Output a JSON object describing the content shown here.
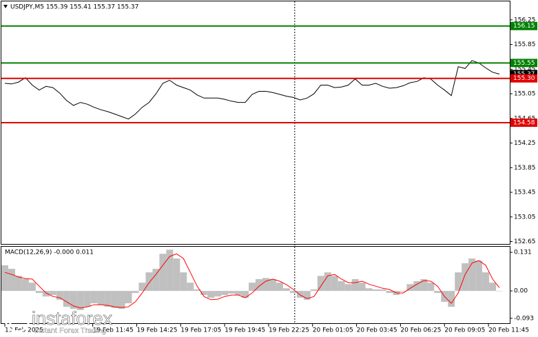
{
  "chart_data": [
    {
      "type": "line",
      "title": "USDJPY,M5  155.39 155.41 155.37 155.37",
      "color": "#000000",
      "x": [
        385,
        410,
        435,
        460,
        485,
        510,
        535,
        560,
        585,
        610,
        635,
        660,
        685,
        710,
        735,
        760,
        785,
        810,
        835,
        860,
        885,
        910,
        935,
        960,
        985,
        1010,
        1035,
        1060,
        1085,
        1110,
        1135,
        1160,
        1185,
        1210,
        1235,
        1260,
        1285,
        1310,
        1335,
        1360,
        1385,
        1410,
        1435,
        1460,
        1485,
        1510,
        1535,
        1560,
        1585,
        1610,
        1635,
        1660,
        1685,
        1710,
        1735,
        1760,
        1785,
        1810,
        1835,
        1860,
        1885,
        1910,
        1935,
        1960,
        1985,
        2010,
        2035,
        2060,
        2085,
        2110,
        2135,
        2160,
        2185
      ],
      "values": [
        155.22,
        155.21,
        155.24,
        155.31,
        155.19,
        155.11,
        155.17,
        155.15,
        155.06,
        154.94,
        154.86,
        154.91,
        154.88,
        154.83,
        154.79,
        154.76,
        154.72,
        154.68,
        154.64,
        154.72,
        154.83,
        154.91,
        155.05,
        155.22,
        155.27,
        155.19,
        155.15,
        155.11,
        155.03,
        154.98,
        154.98,
        154.98,
        154.96,
        154.93,
        154.91,
        154.91,
        155.04,
        155.09,
        155.09,
        155.07,
        155.04,
        155.01,
        154.99,
        154.95,
        154.98,
        155.05,
        155.19,
        155.19,
        155.15,
        155.16,
        155.19,
        155.29,
        155.19,
        155.19,
        155.22,
        155.17,
        155.14,
        155.15,
        155.18,
        155.23,
        155.25,
        155.31,
        155.29,
        155.19,
        155.11,
        155.02,
        155.49,
        155.46,
        155.59,
        155.55,
        155.47,
        155.4,
        155.37
      ],
      "xlim": [
        372.5,
        2222.5
      ],
      "ylim": [
        152.6,
        156.55
      ],
      "yticks": [
        156.25,
        155.85,
        155.45,
        155.05,
        154.65,
        154.25,
        153.85,
        153.45,
        153.05,
        152.65
      ],
      "levels": [
        {
          "value": 156.15,
          "color": "#008000"
        },
        {
          "value": 155.55,
          "color": "#008000"
        },
        {
          "value": 155.3,
          "label": "155.30",
          "color": "#e00000"
        },
        {
          "value": 154.58,
          "color": "#e00000"
        }
      ],
      "separators": [
        1440
      ]
    },
    {
      "type": "macd",
      "title": "MACD(12,26,9) -0.000 0.011",
      "x": [
        385,
        410,
        435,
        460,
        485,
        510,
        535,
        560,
        585,
        610,
        635,
        660,
        685,
        710,
        735,
        760,
        785,
        810,
        835,
        860,
        885,
        910,
        935,
        960,
        985,
        1010,
        1035,
        1060,
        1085,
        1110,
        1135,
        1160,
        1185,
        1210,
        1235,
        1260,
        1285,
        1310,
        1335,
        1360,
        1385,
        1410,
        1435,
        1460,
        1485,
        1510,
        1535,
        1560,
        1585,
        1610,
        1635,
        1660,
        1685,
        1710,
        1735,
        1760,
        1785,
        1810,
        1835,
        1860,
        1885,
        1910,
        1935,
        1960,
        1985,
        2010,
        2035,
        2060,
        2085,
        2110,
        2135,
        2160,
        2185
      ],
      "series": [
        {
          "kind": "bar",
          "color": "#c0c0c0",
          "values": [
            0.087,
            0.075,
            0.051,
            0.04,
            0.028,
            -0.007,
            -0.019,
            -0.014,
            -0.03,
            -0.054,
            -0.061,
            -0.065,
            -0.054,
            -0.042,
            -0.047,
            -0.054,
            -0.058,
            -0.061,
            -0.042,
            -0.007,
            0.028,
            0.063,
            0.075,
            0.126,
            0.14,
            0.11,
            0.063,
            0.028,
            0.005,
            -0.014,
            -0.023,
            -0.019,
            -0.014,
            -0.009,
            -0.014,
            -0.023,
            0.028,
            0.04,
            0.044,
            0.04,
            0.028,
            0.009,
            -0.007,
            -0.023,
            -0.03,
            0.005,
            0.051,
            0.063,
            0.051,
            0.033,
            0.023,
            0.04,
            0.028,
            0.009,
            0.005,
            0.005,
            -0.007,
            -0.014,
            -0.002,
            0.023,
            0.033,
            0.04,
            0.028,
            -0.007,
            -0.037,
            -0.054,
            0.063,
            0.094,
            0.11,
            0.103,
            0.063,
            0.028,
            0
          ]
        },
        {
          "kind": "line",
          "color": "#ff0000",
          "values": [
            0.063,
            0.056,
            0.047,
            0.042,
            0.04,
            0.016,
            -0.007,
            -0.019,
            -0.023,
            -0.037,
            -0.051,
            -0.058,
            -0.054,
            -0.047,
            -0.047,
            -0.049,
            -0.054,
            -0.056,
            -0.054,
            -0.037,
            -0.007,
            0.028,
            0.056,
            0.087,
            0.117,
            0.126,
            0.11,
            0.063,
            0.016,
            -0.019,
            -0.03,
            -0.028,
            -0.019,
            -0.014,
            -0.014,
            -0.023,
            -0.007,
            0.016,
            0.033,
            0.04,
            0.033,
            0.021,
            0.005,
            -0.014,
            -0.026,
            -0.019,
            0.016,
            0.051,
            0.056,
            0.04,
            0.028,
            0.028,
            0.033,
            0.023,
            0.016,
            0.009,
            0.005,
            -0.007,
            -0.007,
            0.009,
            0.023,
            0.035,
            0.033,
            0.016,
            -0.019,
            -0.042,
            -0.007,
            0.056,
            0.094,
            0.103,
            0.087,
            0.04,
            0.011
          ]
        }
      ],
      "xlim": [
        372.5,
        2222.5
      ],
      "ylim": [
        -0.112,
        0.15
      ],
      "yticks": [
        0.131,
        {
          "value": 0,
          "label": "0.00"
        },
        -0.093
      ],
      "xticks": [
        {
          "value": 385,
          "label": "19 Feb 2025"
        },
        {
          "value": 705,
          "label": "19 Feb 11:45"
        },
        {
          "value": 865,
          "label": "19 Feb 14:25"
        },
        {
          "value": 1025,
          "label": "19 Feb 17:05"
        },
        {
          "value": 1185,
          "label": "19 Feb 19:45"
        },
        {
          "value": 1345,
          "label": "19 Feb 22:25"
        },
        {
          "value": 1505,
          "label": "20 Feb 01:05"
        },
        {
          "value": 1665,
          "label": "20 Feb 03:45"
        },
        {
          "value": 1825,
          "label": "20 Feb 06:25"
        },
        {
          "value": 1985,
          "label": "20 Feb 09:05"
        },
        {
          "value": 2145,
          "label": "20 Feb 11:45"
        }
      ]
    }
  ],
  "watermark": {
    "brand": "instaforex",
    "tagline": "Instant Forex Trading"
  }
}
